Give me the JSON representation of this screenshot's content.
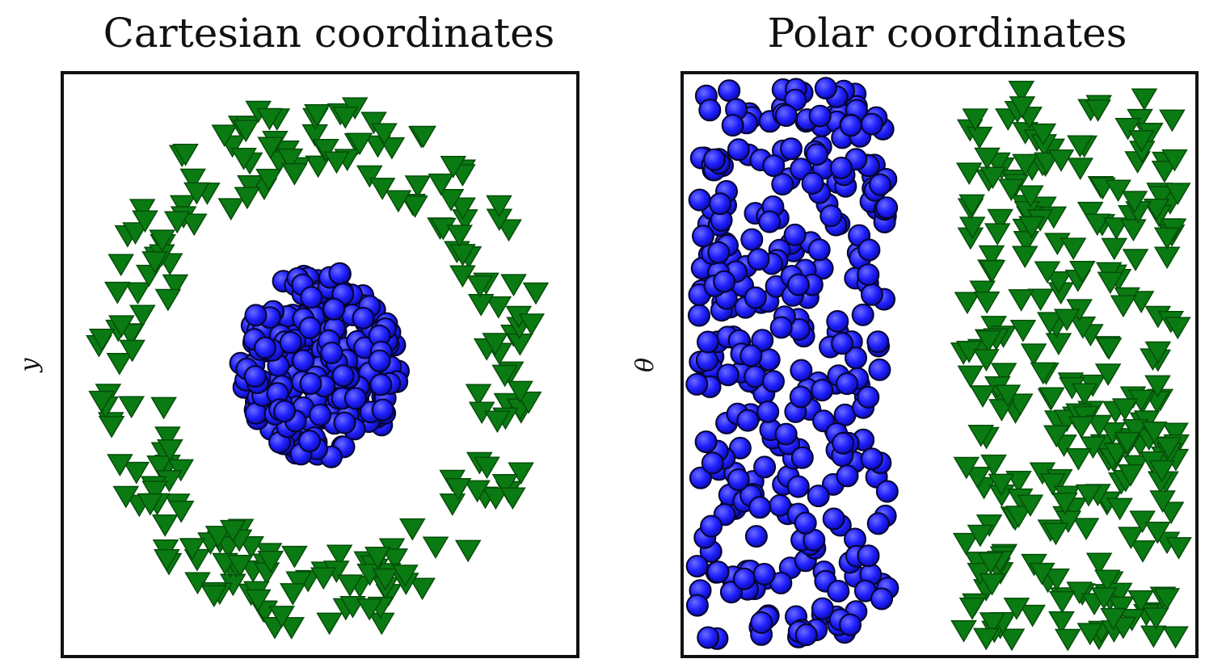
{
  "chart_data": [
    {
      "type": "scatter",
      "title": "Cartesian coordinates",
      "xlabel": "",
      "ylabel": "y",
      "xlim": [
        -1.5,
        1.5
      ],
      "ylim": [
        -1.5,
        1.5
      ],
      "grid": false,
      "ticks_visible": false,
      "series": [
        {
          "marker": "circle",
          "color": "#1f1fff",
          "distribution": "disk",
          "center": [
            0,
            0
          ],
          "radius": [
            0,
            0.48
          ],
          "count": 260
        },
        {
          "marker": "triangle-down",
          "color": "#0a7a12",
          "distribution": "ring",
          "center": [
            0,
            0
          ],
          "radius": [
            0.95,
            1.35
          ],
          "count": 230
        }
      ]
    },
    {
      "type": "scatter",
      "title": "Polar coordinates",
      "xlabel": "",
      "ylabel": "θ",
      "xlim": [
        0,
        1.5
      ],
      "ylim": [
        0,
        6.28
      ],
      "grid": false,
      "ticks_visible": false,
      "series": [
        {
          "marker": "circle",
          "color": "#1f1fff",
          "distribution": "band",
          "x_range": [
            0.02,
            0.6
          ],
          "y_range": [
            0.1,
            6.2
          ],
          "count": 330
        },
        {
          "marker": "triangle-down",
          "color": "#0a7a12",
          "distribution": "band",
          "x_range": [
            0.82,
            1.47
          ],
          "y_range": [
            0.1,
            6.2
          ],
          "count": 300
        }
      ]
    }
  ]
}
